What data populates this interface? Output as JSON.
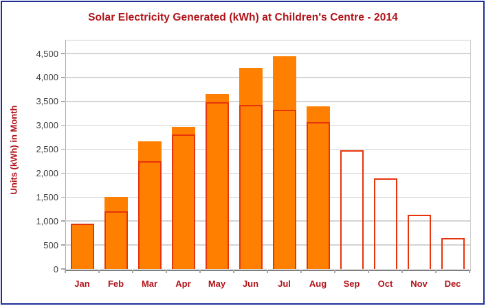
{
  "title": "Solar Electricity Generated (kWh) at Children's Centre - 2014",
  "y_axis_title": "Units (kWh) in Month",
  "colors": {
    "frame_border": "#1F2D96",
    "title_text": "#B11218",
    "month_label_text": "#B11218",
    "y_tick_label_text": "#404040",
    "filled_bar": "#FF8000",
    "outline_bar": "#E8340C",
    "gridline": "#D4D4D4",
    "x_axis_line": "#7F7F7F"
  },
  "chart_data": {
    "type": "bar",
    "title": "Solar Electricity Generated (kWh) at Children's Centre - 2014",
    "xlabel": "",
    "ylabel": "Units (kWh) in Month",
    "categories": [
      "Jan",
      "Feb",
      "Mar",
      "Apr",
      "May",
      "Jun",
      "Jul",
      "Aug",
      "Sep",
      "Oct",
      "Nov",
      "Dec"
    ],
    "series": [
      {
        "name": "filled-bars",
        "style": "filled",
        "color": "#FF8000",
        "values": [
          920,
          1500,
          2670,
          2970,
          3660,
          4200,
          4440,
          3390,
          null,
          null,
          null,
          null
        ]
      },
      {
        "name": "outline-bars",
        "style": "outline",
        "color": "#E8340C",
        "values": [
          940,
          1210,
          2250,
          2810,
          3480,
          3420,
          3320,
          3060,
          2475,
          1890,
          1130,
          650
        ]
      }
    ],
    "ylim": [
      0,
      4787
    ],
    "ytick_interval": 500,
    "yticks": [
      0,
      500,
      1000,
      1500,
      2000,
      2500,
      3000,
      3500,
      4000,
      4500
    ],
    "ytick_labels": [
      "0",
      "500",
      "1,000",
      "1,500",
      "2,000",
      "2,500",
      "3,000",
      "3,500",
      "4,000",
      "4,500"
    ],
    "grid": true,
    "legend": false
  }
}
